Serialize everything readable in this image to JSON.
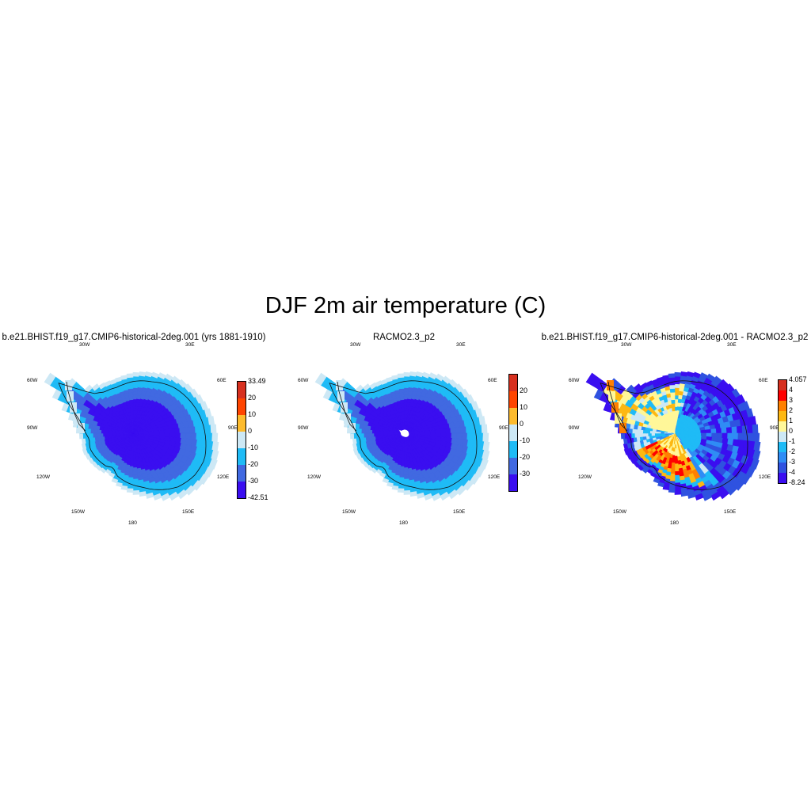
{
  "main_title": "DJF 2m air temperature (C)",
  "panels": [
    {
      "title": "b.e21.BHIST.f19_g17.CMIP6-historical-2deg.001 (yrs 1881-1910)",
      "field": "model",
      "colorbar": {
        "labels": [
          "33.49",
          "20",
          "10",
          "0",
          "-10",
          "-20",
          "-30",
          "-42.51"
        ],
        "colors": [
          "#d7301f",
          "#ff4500",
          "#fdbb2d",
          "#cde8f5",
          "#1fbbf6",
          "#4169e1",
          "#3a0ef0"
        ]
      }
    },
    {
      "title": "RACMO2.3_p2",
      "field": "obs",
      "colorbar": {
        "labels": [
          "20",
          "10",
          "0",
          "-10",
          "-20",
          "-30"
        ],
        "colors": [
          "#d7301f",
          "#ff4500",
          "#fdbb2d",
          "#cde8f5",
          "#1fbbf6",
          "#4169e1",
          "#3a0ef0"
        ]
      }
    },
    {
      "title": "b.e21.BHIST.f19_g17.CMIP6-historical-2deg.001 - RACMO2.3_p2",
      "field": "diff",
      "colorbar": {
        "labels": [
          "4.057",
          "4",
          "3",
          "2",
          "1",
          "0",
          "-1",
          "-2",
          "-3",
          "-4",
          "-8.24"
        ],
        "colors": [
          "#d7301f",
          "#ff0000",
          "#ff8000",
          "#fdb813",
          "#fff799",
          "#cde8f5",
          "#1fbbf6",
          "#2f8cf5",
          "#2f52e0",
          "#3a0ef0"
        ]
      }
    }
  ],
  "longitude_labels": [
    "30W",
    "30E",
    "60W",
    "60E",
    "90W",
    "90E",
    "120W",
    "120E",
    "150W",
    "150E",
    "180"
  ]
}
